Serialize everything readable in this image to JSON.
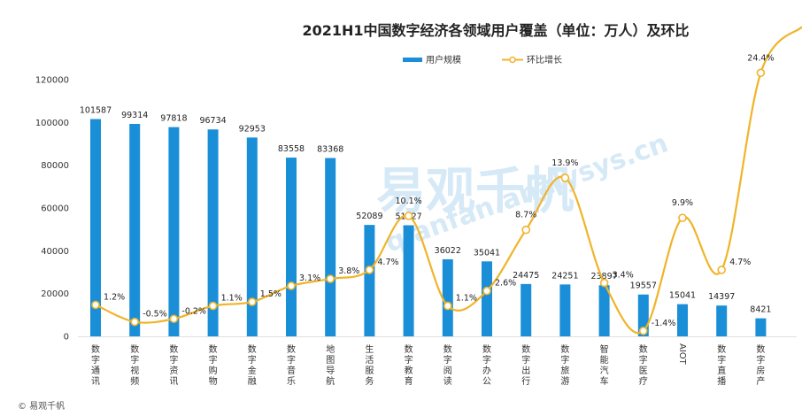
{
  "chart_data": {
    "type": "bar+line",
    "title": "2021H1中国数字经济各领域用户覆盖（单位：万人）及环比",
    "categories": [
      "数字通讯",
      "数字视频",
      "数字资讯",
      "数字购物",
      "数字金融",
      "数字音乐",
      "地图导航",
      "生活服务",
      "数字教育",
      "数字阅读",
      "数字办公",
      "数字出行",
      "数字旅游",
      "智能汽车",
      "数字医疗",
      "AIOT",
      "数字直播",
      "数字房产"
    ],
    "series": [
      {
        "name": "用户规模",
        "type": "bar",
        "color": "#1a8fd8",
        "values": [
          101587,
          99314,
          97818,
          96734,
          92953,
          83558,
          83368,
          52089,
          51927,
          36022,
          35041,
          24475,
          24251,
          23897,
          19557,
          15041,
          14397,
          8421
        ],
        "labels": [
          "101587",
          "99314",
          "97818",
          "96734",
          "92953",
          "83558",
          "83368",
          "52089",
          "51927",
          "36022",
          "35041",
          "24475",
          "24251",
          "23897",
          "19557",
          "15041",
          "14397",
          "8421"
        ]
      },
      {
        "name": "环比增长",
        "type": "line",
        "color": "#f0b429",
        "values": [
          1.2,
          -0.5,
          -0.2,
          1.1,
          1.5,
          3.1,
          3.8,
          4.7,
          10.1,
          1.1,
          2.6,
          8.7,
          13.9,
          3.4,
          -1.4,
          9.9,
          4.7,
          24.4
        ],
        "labels": [
          "1.2%",
          "-0.5%",
          "-0.2%",
          "1.1%",
          "1.5%",
          "3.1%",
          "3.8%",
          "4.7%",
          "10.1%",
          "1.1%",
          "2.6%",
          "8.7%",
          "13.9%",
          "3.4%",
          "-1.4%",
          "9.9%",
          "4.7%",
          "24.4%"
        ]
      }
    ],
    "y_ticks": [
      "0",
      "20000",
      "40000",
      "60000",
      "80000",
      "100000",
      "120000"
    ],
    "ylim": [
      0,
      120000
    ],
    "legend_position": "top-center"
  },
  "watermark": {
    "name": "易观千帆",
    "url": "qianfan.analysys.cn"
  },
  "source": "© 易观千帆"
}
